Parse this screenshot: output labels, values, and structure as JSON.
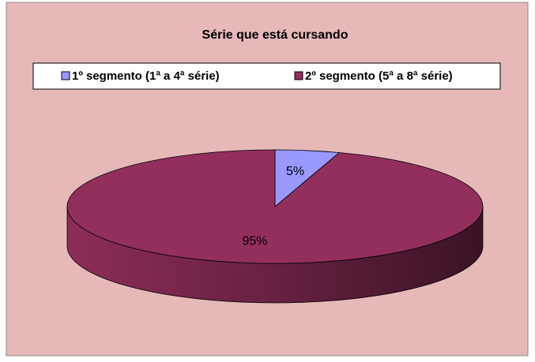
{
  "chart_data": {
    "type": "pie",
    "title": "Série que está cursando",
    "categories": [
      "1º segmento (1ª a 4ª série)",
      "2º segmento (5ª a 8ª série)"
    ],
    "values": [
      5,
      95
    ],
    "value_labels": [
      "5%",
      "95%"
    ],
    "colors": [
      "#9999ff",
      "#932f5c"
    ],
    "legend": "top",
    "background": "#e6b9b8"
  }
}
